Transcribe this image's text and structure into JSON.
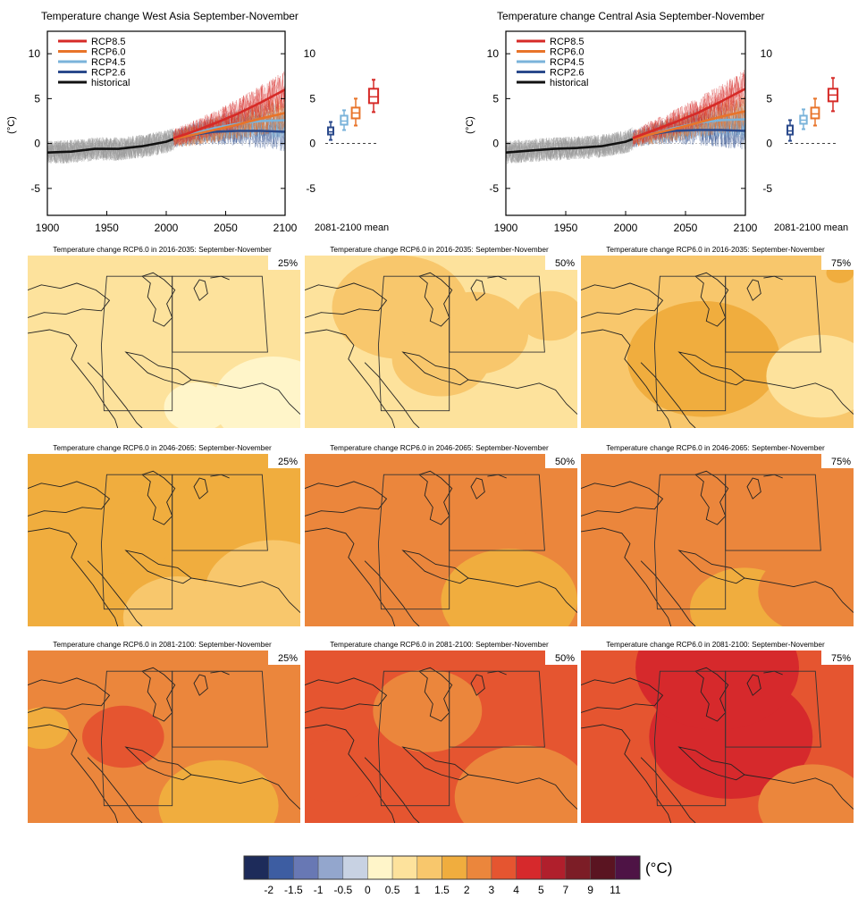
{
  "chart_data": [
    {
      "type": "line",
      "title": "Temperature change West Asia September-November",
      "ylabel": "(°C)",
      "xlim": [
        1900,
        2100
      ],
      "ylim": [
        -8,
        12.5
      ],
      "x_ticks": [
        1900,
        1950,
        2000,
        2050,
        2100
      ],
      "y_ticks": [
        -5,
        0,
        5,
        10
      ],
      "legend": "top-left",
      "series": [
        {
          "name": "RCP8.5",
          "color": "#d62a27",
          "x": [
            2006,
            2020,
            2040,
            2060,
            2080,
            2100
          ],
          "values": [
            0.6,
            1.2,
            2.2,
            3.3,
            4.6,
            6.0
          ]
        },
        {
          "name": "RCP6.0",
          "color": "#e8742a",
          "x": [
            2006,
            2020,
            2040,
            2060,
            2080,
            2100
          ],
          "values": [
            0.5,
            0.9,
            1.5,
            2.1,
            2.8,
            3.4
          ]
        },
        {
          "name": "RCP4.5",
          "color": "#7ab3da",
          "x": [
            2006,
            2020,
            2040,
            2060,
            2080,
            2100
          ],
          "values": [
            0.5,
            1.0,
            1.7,
            2.2,
            2.5,
            2.6
          ]
        },
        {
          "name": "RCP2.6",
          "color": "#2b4a8c",
          "x": [
            2006,
            2020,
            2040,
            2060,
            2080,
            2100
          ],
          "values": [
            0.5,
            0.9,
            1.3,
            1.4,
            1.4,
            1.3
          ]
        },
        {
          "name": "historical",
          "color": "#111111",
          "x": [
            1900,
            1920,
            1940,
            1960,
            1980,
            2000,
            2006
          ],
          "values": [
            -1.0,
            -0.9,
            -0.6,
            -0.6,
            -0.3,
            0.2,
            0.5
          ]
        }
      ],
      "mean_label": "2081-2100 mean",
      "boxes": [
        {
          "series": "RCP2.6",
          "color": "#2b4a8c",
          "min": 0.4,
          "q1": 1.0,
          "median": 1.3,
          "q3": 1.8,
          "max": 2.4
        },
        {
          "series": "RCP4.5",
          "color": "#7ab3da",
          "min": 1.5,
          "q1": 2.1,
          "median": 2.5,
          "q3": 3.1,
          "max": 3.7
        },
        {
          "series": "RCP6.0",
          "color": "#e8742a",
          "min": 2.0,
          "q1": 2.8,
          "median": 3.4,
          "q3": 4.0,
          "max": 5.0
        },
        {
          "series": "RCP8.5",
          "color": "#d62a27",
          "min": 3.5,
          "q1": 4.5,
          "median": 5.2,
          "q3": 6.1,
          "max": 7.1
        }
      ]
    },
    {
      "type": "line",
      "title": "Temperature change Central Asia September-November",
      "ylabel": "(°C)",
      "xlim": [
        1900,
        2100
      ],
      "ylim": [
        -8,
        12.5
      ],
      "x_ticks": [
        1900,
        1950,
        2000,
        2050,
        2100
      ],
      "y_ticks": [
        -5,
        0,
        5,
        10
      ],
      "legend": "top-left",
      "series": [
        {
          "name": "RCP8.5",
          "color": "#d62a27",
          "x": [
            2006,
            2020,
            2040,
            2060,
            2080,
            2100
          ],
          "values": [
            0.6,
            1.3,
            2.3,
            3.4,
            4.7,
            6.1
          ]
        },
        {
          "name": "RCP6.0",
          "color": "#e8742a",
          "x": [
            2006,
            2020,
            2040,
            2060,
            2080,
            2100
          ],
          "values": [
            0.5,
            1.0,
            1.6,
            2.3,
            3.0,
            3.6
          ]
        },
        {
          "name": "RCP4.5",
          "color": "#7ab3da",
          "x": [
            2006,
            2020,
            2040,
            2060,
            2080,
            2100
          ],
          "values": [
            0.5,
            1.0,
            1.7,
            2.3,
            2.6,
            2.7
          ]
        },
        {
          "name": "RCP2.6",
          "color": "#2b4a8c",
          "x": [
            2006,
            2020,
            2040,
            2060,
            2080,
            2100
          ],
          "values": [
            0.5,
            1.0,
            1.4,
            1.5,
            1.5,
            1.4
          ]
        },
        {
          "name": "historical",
          "color": "#111111",
          "x": [
            1900,
            1920,
            1940,
            1960,
            1980,
            2000,
            2006
          ],
          "values": [
            -1.0,
            -0.8,
            -0.6,
            -0.5,
            -0.3,
            0.2,
            0.5
          ]
        }
      ],
      "mean_label": "2081-2100 mean",
      "boxes": [
        {
          "series": "RCP2.6",
          "color": "#2b4a8c",
          "min": 0.3,
          "q1": 1.0,
          "median": 1.4,
          "q3": 2.0,
          "max": 2.6
        },
        {
          "series": "RCP4.5",
          "color": "#7ab3da",
          "min": 1.6,
          "q1": 2.2,
          "median": 2.6,
          "q3": 3.1,
          "max": 3.8
        },
        {
          "series": "RCP6.0",
          "color": "#e8742a",
          "min": 2.0,
          "q1": 2.8,
          "median": 3.3,
          "q3": 4.0,
          "max": 5.0
        },
        {
          "series": "RCP8.5",
          "color": "#d62a27",
          "min": 3.6,
          "q1": 4.7,
          "median": 5.4,
          "q3": 6.1,
          "max": 7.3
        }
      ]
    },
    {
      "type": "heatmap",
      "rows": [
        {
          "title": "Temperature change RCP6.0 in 2016-2035: September-November",
          "maps": [
            {
              "percentile": "25%",
              "base": 0.7,
              "blobs": [
                {
                  "cx": 0.9,
                  "cy": 0.85,
                  "r": 0.22,
                  "v": 0.3
                },
                {
                  "cx": 0.62,
                  "cy": 0.88,
                  "r": 0.12,
                  "v": 0.35
                },
                {
                  "cx": 0.38,
                  "cy": 0.25,
                  "r": 0.1,
                  "v": 0.8
                }
              ]
            },
            {
              "percentile": "50%",
              "base": 0.8,
              "blobs": [
                {
                  "cx": 0.35,
                  "cy": 0.3,
                  "r": 0.25,
                  "v": 1.2
                },
                {
                  "cx": 0.62,
                  "cy": 0.45,
                  "r": 0.2,
                  "v": 1.1
                },
                {
                  "cx": 0.9,
                  "cy": 0.35,
                  "r": 0.12,
                  "v": 1.1
                },
                {
                  "cx": 0.5,
                  "cy": 0.6,
                  "r": 0.18,
                  "v": 1.15
                }
              ]
            },
            {
              "percentile": "75%",
              "base": 1.1,
              "blobs": [
                {
                  "cx": 0.45,
                  "cy": 0.6,
                  "r": 0.28,
                  "v": 1.6
                },
                {
                  "cx": 0.88,
                  "cy": 0.7,
                  "r": 0.2,
                  "v": 0.8
                },
                {
                  "cx": 0.95,
                  "cy": 0.1,
                  "r": 0.05,
                  "v": 1.6
                }
              ]
            }
          ]
        },
        {
          "title": "Temperature change RCP6.0 in 2046-2065: September-November",
          "maps": [
            {
              "percentile": "25%",
              "base": 1.7,
              "blobs": [
                {
                  "cx": 0.9,
                  "cy": 0.8,
                  "r": 0.25,
                  "v": 1.2
                },
                {
                  "cx": 0.55,
                  "cy": 0.95,
                  "r": 0.2,
                  "v": 1.1
                },
                {
                  "cx": 0.35,
                  "cy": 0.45,
                  "r": 0.2,
                  "v": 1.9
                }
              ]
            },
            {
              "percentile": "50%",
              "base": 2.1,
              "blobs": [
                {
                  "cx": 0.45,
                  "cy": 0.4,
                  "r": 0.22,
                  "v": 2.7
                },
                {
                  "cx": 0.75,
                  "cy": 0.3,
                  "r": 0.15,
                  "v": 2.6
                },
                {
                  "cx": 0.75,
                  "cy": 0.85,
                  "r": 0.25,
                  "v": 1.7
                }
              ]
            },
            {
              "percentile": "75%",
              "base": 2.6,
              "blobs": [
                {
                  "cx": 0.6,
                  "cy": 0.9,
                  "r": 0.2,
                  "v": 1.9
                },
                {
                  "cx": 0.85,
                  "cy": 0.8,
                  "r": 0.2,
                  "v": 2.2
                }
              ]
            }
          ]
        },
        {
          "title": "Temperature change RCP6.0 in 2081-2100: September-November",
          "maps": [
            {
              "percentile": "25%",
              "base": 2.6,
              "blobs": [
                {
                  "cx": 0.7,
                  "cy": 0.9,
                  "r": 0.22,
                  "v": 1.9
                },
                {
                  "cx": 0.35,
                  "cy": 0.5,
                  "r": 0.15,
                  "v": 3.3
                },
                {
                  "cx": 0.05,
                  "cy": 0.45,
                  "r": 0.1,
                  "v": 1.9
                }
              ]
            },
            {
              "percentile": "50%",
              "base": 3.4,
              "blobs": [
                {
                  "cx": 0.8,
                  "cy": 0.85,
                  "r": 0.25,
                  "v": 2.4
                },
                {
                  "cx": 0.45,
                  "cy": 0.35,
                  "r": 0.2,
                  "v": 2.9
                },
                {
                  "cx": 0.1,
                  "cy": 0.7,
                  "r": 0.15,
                  "v": 3.7
                }
              ]
            },
            {
              "percentile": "75%",
              "base": 3.6,
              "blobs": [
                {
                  "cx": 0.55,
                  "cy": 0.5,
                  "r": 0.3,
                  "v": 4.4
                },
                {
                  "cx": 0.5,
                  "cy": 0.1,
                  "r": 0.3,
                  "v": 4.2
                },
                {
                  "cx": 0.85,
                  "cy": 0.9,
                  "r": 0.2,
                  "v": 2.7
                }
              ]
            }
          ]
        }
      ],
      "colorbar": {
        "unit": "(°C)",
        "labels": [
          "-2",
          "-1.5",
          "-1",
          "-0.5",
          "0",
          "0.5",
          "1",
          "1.5",
          "2",
          "3",
          "4",
          "5",
          "7",
          "9",
          "11"
        ],
        "thresholds": [
          -2,
          -1.5,
          -1,
          -0.5,
          0,
          0.5,
          1,
          1.5,
          2,
          3,
          4,
          5,
          7,
          9,
          11
        ],
        "colors": [
          "#1d2b5a",
          "#3d5da2",
          "#6878b4",
          "#93a6cd",
          "#c8d2e3",
          "#fff5c9",
          "#fde29c",
          "#f8c76c",
          "#f0ad3e",
          "#eb863c",
          "#e55530",
          "#d6292c",
          "#b01f2c",
          "#7c1d26",
          "#5a1421",
          "#4e1345"
        ]
      }
    }
  ]
}
